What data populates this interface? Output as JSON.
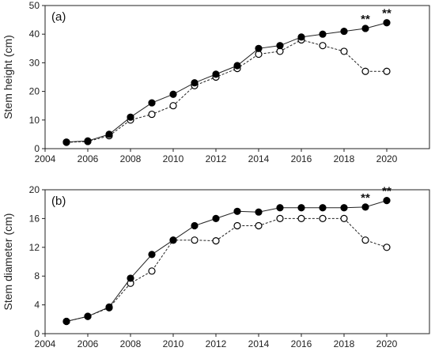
{
  "chart_data": [
    {
      "type": "line",
      "panel_label": "(a)",
      "ylabel": "Stem height (cm)",
      "xlabel": "",
      "xlim": [
        2004,
        2022
      ],
      "ylim": [
        0,
        50
      ],
      "xticks": [
        2004,
        2006,
        2008,
        2010,
        2012,
        2014,
        2016,
        2018,
        2020
      ],
      "yticks": [
        0,
        10,
        20,
        30,
        40,
        50
      ],
      "x": [
        2005,
        2006,
        2007,
        2008,
        2009,
        2010,
        2011,
        2012,
        2013,
        2014,
        2015,
        2016,
        2017,
        2018,
        2019,
        2020
      ],
      "series": [
        {
          "style": "filled-circle-solid",
          "values": [
            2.3,
            2.7,
            5.0,
            11.0,
            16.0,
            19.0,
            23.0,
            26.0,
            29.0,
            35.0,
            36.0,
            39.0,
            40.0,
            41.0,
            42.0,
            44.0
          ]
        },
        {
          "style": "open-circle-dashed",
          "values": [
            2.2,
            2.5,
            4.5,
            10.0,
            12.0,
            15.0,
            22.0,
            25.0,
            28.0,
            33.0,
            34.0,
            38.0,
            36.0,
            34.0,
            27.0,
            27.0
          ]
        }
      ],
      "annotations": [
        {
          "text": "**",
          "x": 2019,
          "y": 42.0
        },
        {
          "text": "**",
          "x": 2020,
          "y": 44.0
        }
      ],
      "grid": false
    },
    {
      "type": "line",
      "panel_label": "(b)",
      "ylabel": "Stem diameter (cm)",
      "xlabel": "",
      "xlim": [
        2004,
        2022
      ],
      "ylim": [
        0,
        20
      ],
      "xticks": [
        2004,
        2006,
        2008,
        2010,
        2012,
        2014,
        2016,
        2018,
        2020
      ],
      "yticks": [
        0,
        4,
        8,
        12,
        16,
        20
      ],
      "x": [
        2005,
        2006,
        2007,
        2008,
        2009,
        2010,
        2011,
        2012,
        2013,
        2014,
        2015,
        2016,
        2017,
        2018,
        2019,
        2020
      ],
      "series": [
        {
          "style": "filled-circle-solid",
          "values": [
            1.7,
            2.4,
            3.7,
            7.7,
            11.0,
            13.0,
            15.0,
            16.0,
            17.0,
            16.9,
            17.5,
            17.5,
            17.5,
            17.5,
            17.6,
            18.5
          ]
        },
        {
          "style": "open-circle-dashed",
          "values": [
            1.7,
            2.4,
            3.6,
            7.0,
            8.7,
            13.0,
            13.0,
            12.9,
            15.0,
            15.0,
            16.0,
            16.0,
            16.0,
            16.0,
            13.0,
            12.0
          ]
        }
      ],
      "annotations": [
        {
          "text": "**",
          "x": 2019,
          "y": 17.6
        },
        {
          "text": "**",
          "x": 2020,
          "y": 18.5
        }
      ],
      "grid": false
    }
  ]
}
